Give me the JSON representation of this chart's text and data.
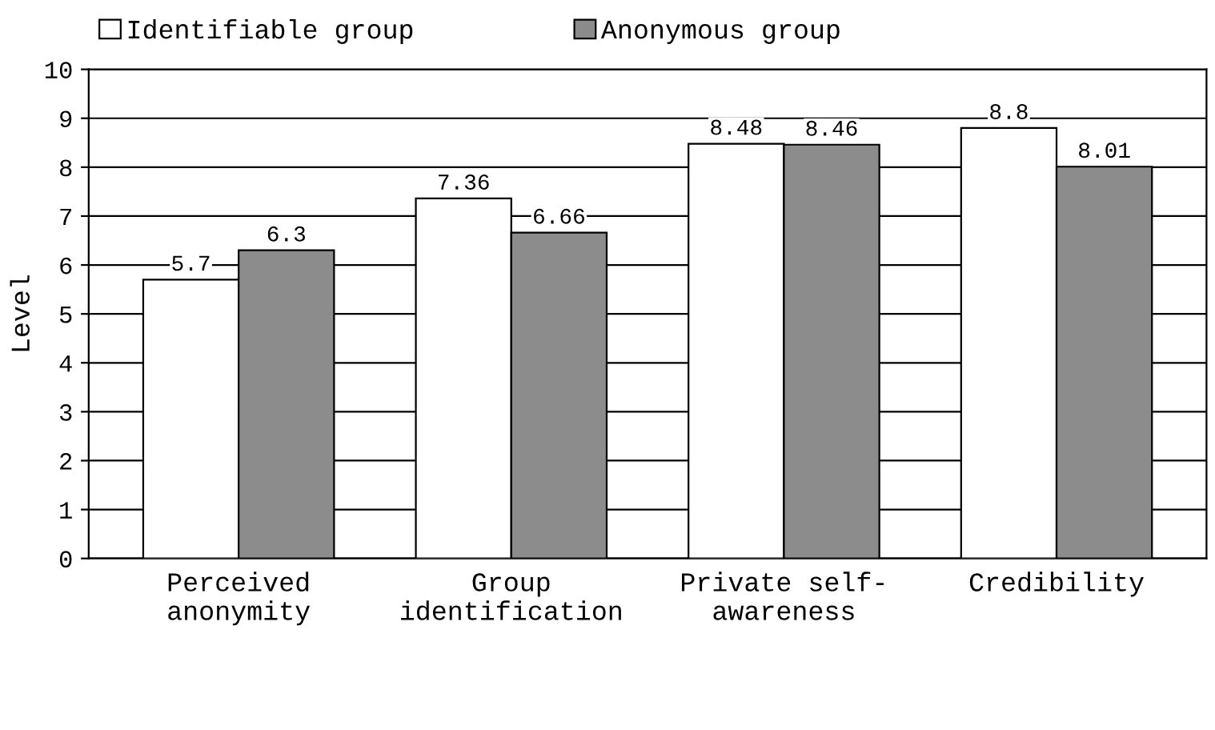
{
  "chart_data": {
    "type": "bar",
    "categories": [
      "Perceived\nanonymity",
      "Group\nidentification",
      "Private self-\nawareness",
      "Credibility"
    ],
    "series": [
      {
        "name": "Identifiable group",
        "color": "#ffffff",
        "values": [
          5.7,
          7.36,
          8.48,
          8.8
        ]
      },
      {
        "name": "Anonymous group",
        "color": "#8c8c8c",
        "values": [
          6.3,
          6.66,
          8.46,
          8.01
        ]
      }
    ],
    "ylabel": "Level",
    "ylim": [
      0,
      10
    ],
    "yticks": [
      0,
      1,
      2,
      3,
      4,
      5,
      6,
      7,
      8,
      9,
      10
    ],
    "grid": "y",
    "legend": "top",
    "data_labels": true
  }
}
